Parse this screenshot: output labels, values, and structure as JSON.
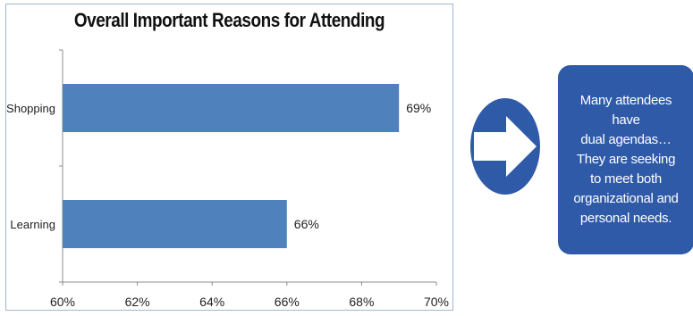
{
  "chart_data": {
    "type": "bar",
    "orientation": "horizontal",
    "title": "Overall Important Reasons for Attending",
    "categories": [
      "Shopping",
      "Learning"
    ],
    "values": [
      69,
      66
    ],
    "data_labels": [
      "69%",
      "66%"
    ],
    "xlim": [
      60,
      70
    ],
    "x_ticks": [
      "60%",
      "62%",
      "64%",
      "66%",
      "68%",
      "70%"
    ],
    "x_tick_values": [
      60,
      62,
      64,
      66,
      68,
      70
    ],
    "grid": false,
    "bar_color": "#4f81bd"
  },
  "callout": {
    "text": "Many attendees have\ndual agendas…\nThey are seeking\nto meet both\norganizational and\npersonal needs.",
    "color": "#2f5aa8"
  },
  "arrow": {
    "icon": "right-arrow-icon",
    "color": "#2f5aa8"
  }
}
